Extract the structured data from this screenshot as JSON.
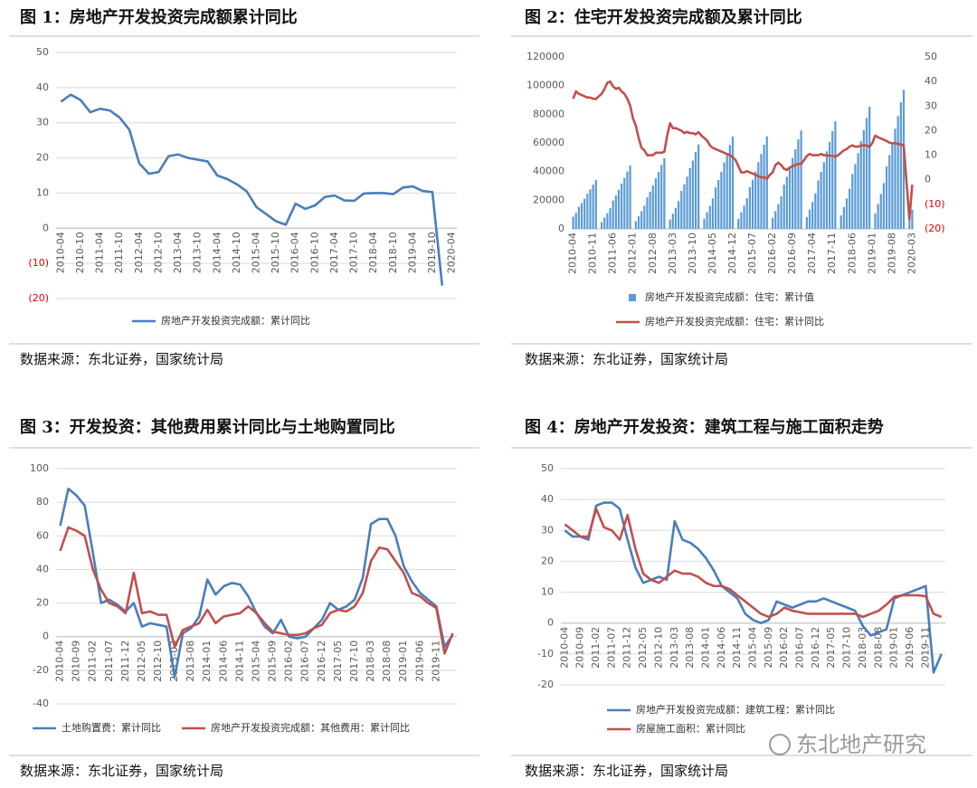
{
  "chart_data": [
    {
      "type": "line",
      "title": "图 1：房地产开发投资完成额累计同比",
      "source": "数据来源：东北证券，国家统计局",
      "categories": [
        "2010-04",
        null,
        "2010-10",
        null,
        "2011-04",
        null,
        "2011-10",
        null,
        "2012-04",
        null,
        "2012-10",
        null,
        "2013-04",
        null,
        "2013-10",
        null,
        "2014-04",
        null,
        "2014-10",
        null,
        "2015-04",
        null,
        "2015-10",
        null,
        "2016-04",
        null,
        "2016-10",
        null,
        "2017-04",
        null,
        "2017-10",
        null,
        "2018-04",
        null,
        "2018-10",
        null,
        "2019-04",
        null,
        "2019-10",
        null,
        "2020-04"
      ],
      "series": [
        {
          "name": "房地产开发投资完成额：累计同比",
          "color": "#4a7ebb",
          "values": [
            36,
            38,
            36.5,
            33,
            34,
            33.5,
            31.5,
            28,
            18.5,
            15.5,
            16,
            20.5,
            21,
            20,
            19.5,
            19,
            15,
            14,
            12.5,
            10.5,
            6,
            4,
            2,
            1,
            7,
            5.5,
            6.5,
            8.9,
            9.3,
            7.9,
            7.8,
            9.9,
            10,
            10,
            9.7,
            11.6,
            11.9,
            10.6,
            10.3,
            -16.3,
            null
          ]
        }
      ],
      "ylim": [
        -20,
        50
      ],
      "yticks": [
        {
          "value": -20,
          "label": "(20)"
        },
        {
          "value": -10,
          "label": "(10)"
        },
        0,
        10,
        20,
        30,
        40,
        50
      ],
      "negative_tick_color": "#e00000",
      "grid": true
    },
    {
      "type": "combo",
      "title": "图 2：住宅开发投资完成额及累计同比",
      "source": "数据来源：东北证券，国家统计局",
      "categories": [
        "2010-04",
        null,
        null,
        null,
        null,
        null,
        null,
        "2010-11",
        null,
        null,
        null,
        null,
        null,
        null,
        "2011-06",
        null,
        null,
        null,
        null,
        null,
        null,
        "2012-01",
        null,
        null,
        null,
        null,
        null,
        null,
        "2012-08",
        null,
        null,
        null,
        null,
        null,
        null,
        "2013-03",
        null,
        null,
        null,
        null,
        null,
        null,
        "2013-10",
        null,
        null,
        null,
        null,
        null,
        null,
        "2014-05",
        null,
        null,
        null,
        null,
        null,
        null,
        "2014-12",
        null,
        null,
        null,
        null,
        null,
        null,
        "2015-07",
        null,
        null,
        null,
        null,
        null,
        null,
        "2016-02",
        null,
        null,
        null,
        null,
        null,
        null,
        "2016-09",
        null,
        null,
        null,
        null,
        null,
        null,
        "2017-04",
        null,
        null,
        null,
        null,
        null,
        null,
        "2017-11",
        null,
        null,
        null,
        null,
        null,
        null,
        "2018-06",
        null,
        null,
        null,
        null,
        null,
        null,
        "2019-01",
        null,
        null,
        null,
        null,
        null,
        null,
        "2019-08",
        null,
        null,
        null,
        null,
        null,
        null,
        "2020-03"
      ],
      "series": [
        {
          "name": "房地产开发投资完成额：住宅：累计值",
          "kind": "bar",
          "color": "#5b9bd5",
          "values": [
            8500,
            11200,
            15300,
            18000,
            21100,
            24500,
            27500,
            30900,
            34000,
            null,
            4800,
            7900,
            11000,
            14500,
            19800,
            23300,
            27300,
            31700,
            35600,
            40000,
            44300,
            null,
            5400,
            8800,
            12300,
            16200,
            22000,
            26000,
            30400,
            35300,
            39700,
            44600,
            49400,
            null,
            6500,
            10600,
            14700,
            19400,
            26500,
            31200,
            36500,
            42400,
            47700,
            53600,
            58900,
            null,
            7100,
            11600,
            16100,
            21300,
            29000,
            34100,
            39900,
            46400,
            52200,
            58600,
            64400,
            null,
            7100,
            11600,
            16200,
            21300,
            29100,
            34200,
            40100,
            46500,
            52300,
            58800,
            64600,
            null,
            7600,
            12400,
            17200,
            22700,
            30900,
            36400,
            42600,
            49500,
            55600,
            62500,
            68700,
            null,
            8300,
            13500,
            18800,
            24800,
            33800,
            39800,
            46600,
            54100,
            60800,
            68300,
            75100,
            null,
            9400,
            15300,
            21300,
            28100,
            38300,
            45200,
            52800,
            61300,
            69000,
            77500,
            85200,
            null,
            10700,
            17500,
            24300,
            32000,
            43700,
            51500,
            60200,
            69900,
            78700,
            88400,
            97100,
            null,
            8000,
            13400
          ]
        },
        {
          "name": "房地产开发投资完成额：住宅：累计同比",
          "kind": "line",
          "axis": "y2",
          "color": "#c0504d",
          "values": [
            33,
            36,
            35,
            34.5,
            34,
            33.5,
            33.5,
            33,
            32.9,
            34,
            35,
            37,
            39.5,
            40,
            38,
            37,
            37.5,
            36,
            35,
            33,
            30.2,
            25,
            22,
            17,
            13,
            12,
            10,
            10,
            10,
            11,
            11,
            11,
            11.4,
            18,
            23,
            21,
            21,
            20.5,
            20,
            19,
            19.5,
            19,
            19,
            18.5,
            19.4,
            18,
            17,
            16,
            14,
            13,
            12.5,
            12,
            11.5,
            11,
            10.5,
            10,
            9.2,
            8,
            5.5,
            3,
            3,
            3.5,
            3,
            2.5,
            2,
            1.5,
            1,
            1,
            0.4,
            2,
            3,
            6,
            7,
            6,
            4.5,
            4,
            5,
            5.5,
            6,
            6.5,
            6.4,
            8,
            9.7,
            10.5,
            10,
            10,
            10,
            10.5,
            10,
            10,
            9.8,
            9.7,
            9.4,
            10,
            11,
            12,
            12.5,
            13.5,
            14,
            13.5,
            13.5,
            14,
            14,
            14,
            13.4,
            15,
            18,
            17.3,
            16.8,
            16.3,
            15.8,
            15.1,
            14.9,
            14.9,
            14.6,
            14.4,
            13.9,
            -1,
            -16,
            -2
          ]
        }
      ],
      "ylim": [
        0,
        120000
      ],
      "yticks": [
        0,
        20000,
        40000,
        60000,
        80000,
        100000,
        120000
      ],
      "y2lim": [
        -20,
        50
      ],
      "y2ticks": [
        {
          "value": -20,
          "label": "(20)"
        },
        {
          "value": -10,
          "label": "(10)"
        },
        0,
        10,
        20,
        30,
        40,
        50
      ],
      "negative_tick_color": "#e00000",
      "grid": false
    },
    {
      "type": "line",
      "title": "图 3：开发投资：其他费用累计同比与土地购置同比",
      "source": "数据来源：东北证券，国家统计局",
      "categories": [
        "2010-04",
        null,
        "2010-09",
        null,
        "2011-02",
        null,
        "2011-07",
        null,
        "2011-12",
        null,
        "2012-05",
        null,
        "2012-10",
        null,
        "2013-03",
        null,
        "2013-08",
        null,
        "2014-01",
        null,
        "2014-06",
        null,
        "2014-11",
        null,
        "2015-04",
        null,
        "2015-09",
        null,
        "2016-02",
        null,
        "2016-07",
        null,
        "2016-12",
        null,
        "2017-05",
        null,
        "2017-10",
        null,
        "2018-03",
        null,
        "2018-08",
        null,
        "2019-01",
        null,
        "2019-06",
        null,
        "2019-11",
        null,
        null
      ],
      "series": [
        {
          "name": "土地购置费：累计同比",
          "color": "#4a7ebb",
          "values": [
            66,
            88,
            84,
            78,
            50,
            20,
            22,
            19,
            15,
            20,
            6,
            8,
            7,
            6,
            -24,
            2,
            5,
            12,
            34,
            25,
            30,
            32,
            31,
            24,
            14,
            6,
            2,
            10,
            0,
            -1,
            0,
            5,
            10,
            20,
            16,
            18,
            22,
            35,
            67,
            70,
            70,
            60,
            42,
            33,
            26,
            22,
            18,
            -6,
            1
          ]
        },
        {
          "name": "房地产开发投资完成额：其他费用：累计同比",
          "color": "#c0504d",
          "values": [
            51,
            65,
            63,
            60,
            40,
            28,
            20,
            18,
            14,
            38,
            14,
            15,
            13,
            13,
            -6,
            4,
            6,
            8,
            16,
            8,
            12,
            13,
            14,
            18,
            14,
            8,
            3,
            2,
            1,
            1,
            2,
            5,
            7,
            14,
            16,
            15,
            18,
            26,
            45,
            53,
            52,
            45,
            38,
            26,
            24,
            20,
            17,
            -10,
            2
          ]
        }
      ],
      "ylim": [
        -40,
        100
      ],
      "yticks": [
        -40,
        -20,
        0,
        20,
        40,
        60,
        80,
        100
      ],
      "grid": true
    },
    {
      "type": "line",
      "title": "图 4：房地产开发投资：建筑工程与施工面积走势",
      "source": "数据来源：东北证券，国家统计局",
      "categories": [
        "2010-04",
        null,
        "2010-09",
        null,
        "2011-02",
        null,
        "2011-07",
        null,
        "2011-12",
        null,
        "2012-05",
        null,
        "2012-10",
        null,
        "2013-03",
        null,
        "2013-08",
        null,
        "2014-01",
        null,
        "2014-06",
        null,
        "2014-11",
        null,
        "2015-04",
        null,
        "2015-09",
        null,
        "2016-02",
        null,
        "2016-07",
        null,
        "2016-12",
        null,
        "2017-05",
        null,
        "2017-10",
        null,
        "2018-03",
        null,
        "2018-08",
        null,
        "2019-01",
        null,
        "2019-06",
        null,
        "2019-11",
        null,
        null
      ],
      "series": [
        {
          "name": "房地产开发投资完成额：建筑工程：累计同比",
          "color": "#4a7ebb",
          "values": [
            30,
            28,
            28,
            27,
            38,
            39,
            39,
            37,
            27,
            18,
            13,
            14,
            15,
            14,
            33,
            27,
            26,
            24,
            21,
            17,
            12,
            10,
            8,
            3,
            1,
            0,
            1,
            7,
            6,
            5,
            6,
            7,
            7,
            8,
            7,
            6,
            5,
            4,
            -1,
            -4,
            -3,
            -2,
            8,
            9,
            10,
            11,
            12,
            -16,
            -10
          ]
        },
        {
          "name": "房屋施工面积：累计同比",
          "color": "#c0504d",
          "values": [
            32,
            30,
            28,
            28,
            37,
            31,
            30,
            27,
            35,
            24,
            16,
            14,
            13,
            15,
            17,
            16,
            16,
            15,
            13,
            12,
            12,
            11,
            9,
            7,
            5,
            3,
            2,
            3,
            5,
            4,
            3.5,
            3,
            3,
            3,
            3,
            3,
            3,
            3,
            2,
            3,
            4,
            6,
            8.5,
            9,
            9,
            9,
            8.7,
            3,
            2
          ]
        }
      ],
      "ylim": [
        -20,
        50
      ],
      "yticks": [
        -20,
        -10,
        0,
        10,
        20,
        30,
        40,
        50
      ],
      "grid": true
    }
  ],
  "watermark": "东北地产研究"
}
